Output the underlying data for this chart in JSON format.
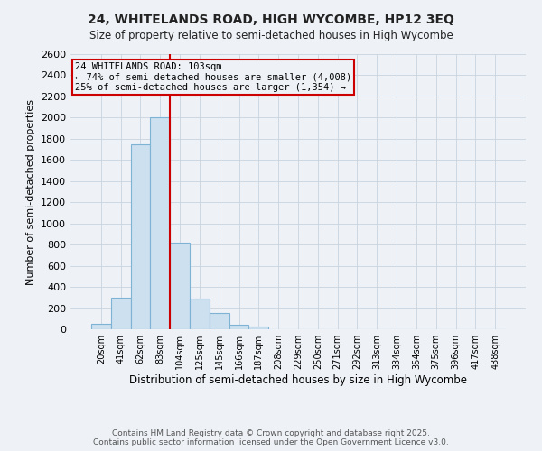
{
  "title": "24, WHITELANDS ROAD, HIGH WYCOMBE, HP12 3EQ",
  "subtitle": "Size of property relative to semi-detached houses in High Wycombe",
  "xlabel": "Distribution of semi-detached houses by size in High Wycombe",
  "ylabel": "Number of semi-detached properties",
  "categories": [
    "20sqm",
    "41sqm",
    "62sqm",
    "83sqm",
    "104sqm",
    "125sqm",
    "145sqm",
    "166sqm",
    "187sqm",
    "208sqm",
    "229sqm",
    "250sqm",
    "271sqm",
    "292sqm",
    "313sqm",
    "334sqm",
    "354sqm",
    "375sqm",
    "396sqm",
    "417sqm",
    "438sqm"
  ],
  "values": [
    50,
    300,
    1750,
    2000,
    820,
    290,
    155,
    40,
    25,
    0,
    0,
    0,
    0,
    0,
    0,
    0,
    0,
    0,
    0,
    0,
    0
  ],
  "bar_color": "#cce0f0",
  "bar_edge_color": "#7fb3d3",
  "vline_x_index": 4,
  "vline_color": "#cc0000",
  "annotation_title": "24 WHITELANDS ROAD: 103sqm",
  "annotation_line1": "← 74% of semi-detached houses are smaller (4,008)",
  "annotation_line2": "25% of semi-detached houses are larger (1,354) →",
  "annotation_box_color": "#cc0000",
  "ylim": [
    0,
    2600
  ],
  "yticks": [
    0,
    200,
    400,
    600,
    800,
    1000,
    1200,
    1400,
    1600,
    1800,
    2000,
    2200,
    2400,
    2600
  ],
  "grid_color": "#c8d4e0",
  "bg_color": "#eef2f7",
  "footer_line1": "Contains HM Land Registry data © Crown copyright and database right 2025.",
  "footer_line2": "Contains public sector information licensed under the Open Government Licence v3.0."
}
